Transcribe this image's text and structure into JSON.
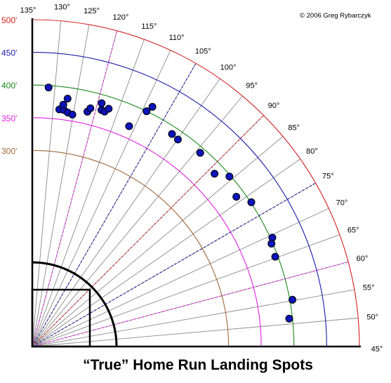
{
  "chart_data": {
    "type": "scatter",
    "title": "“True” Home Run Landing Spots",
    "copyright": "© 2006 Greg Rybarczyk",
    "coordinate_system": "polar",
    "distance_unit": "feet",
    "angle_range": [
      45,
      135
    ],
    "distance_range": [
      0,
      500
    ],
    "distance_arcs": [
      {
        "distance": 300,
        "label": "300'",
        "color": "#a0673a"
      },
      {
        "distance": 350,
        "label": "350'",
        "color": "#e020e0"
      },
      {
        "distance": 400,
        "label": "400'",
        "color": "#1a8a1a"
      },
      {
        "distance": 450,
        "label": "450'",
        "color": "#1a1aa8"
      },
      {
        "distance": 500,
        "label": "500'",
        "color": "#d42020"
      }
    ],
    "angle_ticks": [
      {
        "angle": 135,
        "label": "135°"
      },
      {
        "angle": 130,
        "label": "130°"
      },
      {
        "angle": 125,
        "label": "125°"
      },
      {
        "angle": 120,
        "label": "120°"
      },
      {
        "angle": 115,
        "label": "115°"
      },
      {
        "angle": 110,
        "label": "110°"
      },
      {
        "angle": 105,
        "label": "105°"
      },
      {
        "angle": 100,
        "label": "100°"
      },
      {
        "angle": 95,
        "label": "95°"
      },
      {
        "angle": 90,
        "label": "90°"
      },
      {
        "angle": 85,
        "label": "85°"
      },
      {
        "angle": 80,
        "label": "80°"
      },
      {
        "angle": 75,
        "label": "75°"
      },
      {
        "angle": 70,
        "label": "70°"
      },
      {
        "angle": 65,
        "label": "65°"
      },
      {
        "angle": 60,
        "label": "60°"
      },
      {
        "angle": 55,
        "label": "55°"
      },
      {
        "angle": 50,
        "label": "50°"
      },
      {
        "angle": 45,
        "label": "45°"
      }
    ],
    "dashed_rays": [
      {
        "angle": 120,
        "color": "#e020e0"
      },
      {
        "angle": 105,
        "color": "#1a1aa8"
      },
      {
        "angle": 90,
        "color": "#d42020"
      },
      {
        "angle": 75,
        "color": "#1a1aa8"
      },
      {
        "angle": 60,
        "color": "#e020e0"
      }
    ],
    "points": [
      {
        "angle": 131.4,
        "distance": 397
      },
      {
        "angle": 128.5,
        "distance": 365
      },
      {
        "angle": 127.4,
        "distance": 365
      },
      {
        "angle": 127.7,
        "distance": 373
      },
      {
        "angle": 126.9,
        "distance": 383
      },
      {
        "angle": 126.4,
        "distance": 362
      },
      {
        "angle": 125.2,
        "distance": 360
      },
      {
        "angle": 121.8,
        "distance": 369
      },
      {
        "angle": 121.3,
        "distance": 375
      },
      {
        "angle": 119.1,
        "distance": 387
      },
      {
        "angle": 118.7,
        "distance": 377
      },
      {
        "angle": 117.9,
        "distance": 376
      },
      {
        "angle": 117.2,
        "distance": 382
      },
      {
        "angle": 111.3,
        "distance": 368
      },
      {
        "angle": 109.1,
        "distance": 400
      },
      {
        "angle": 108.4,
        "distance": 410
      },
      {
        "angle": 101.7,
        "distance": 389
      },
      {
        "angle": 99.9,
        "distance": 387
      },
      {
        "angle": 94.1,
        "distance": 392
      },
      {
        "angle": 88.5,
        "distance": 384
      },
      {
        "angle": 85.8,
        "distance": 398
      },
      {
        "angle": 81.3,
        "distance": 387
      },
      {
        "angle": 78.4,
        "distance": 401
      },
      {
        "angle": 69.4,
        "distance": 403
      },
      {
        "angle": 68.3,
        "distance": 398
      },
      {
        "angle": 65.3,
        "distance": 396
      },
      {
        "angle": 55.2,
        "distance": 404
      },
      {
        "angle": 51.2,
        "distance": 395
      }
    ]
  }
}
